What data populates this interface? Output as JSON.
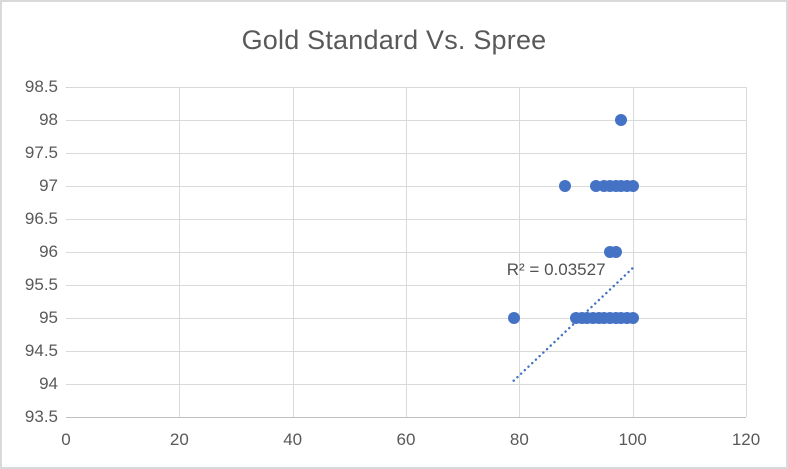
{
  "chart_data": {
    "type": "scatter",
    "title": "Gold Standard Vs. Spree",
    "xlabel": "",
    "ylabel": "",
    "xlim": [
      0,
      120
    ],
    "ylim": [
      93.5,
      98.5
    ],
    "x_ticks": [
      0,
      20,
      40,
      60,
      80,
      100,
      120
    ],
    "x_tick_labels": [
      "0",
      "20",
      "40",
      "60",
      "80",
      "100",
      "120"
    ],
    "y_ticks": [
      93.5,
      94,
      94.5,
      95,
      95.5,
      96,
      96.5,
      97,
      97.5,
      98,
      98.5
    ],
    "y_tick_labels": [
      "93.5",
      "94",
      "94.5",
      "95",
      "95.5",
      "96",
      "96.5",
      "97",
      "97.5",
      "98",
      "98.5"
    ],
    "grid": true,
    "legend": "none",
    "marker_color": "#4472C4",
    "gridline_color": "#D9D9D9",
    "axis_label_color": "#595959",
    "title_color": "#595959",
    "r2_label_color": "#515151",
    "points": [
      [
        98,
        98
      ],
      [
        88,
        97
      ],
      [
        93.5,
        97
      ],
      [
        95,
        97
      ],
      [
        96,
        97
      ],
      [
        97,
        97
      ],
      [
        98,
        97
      ],
      [
        99,
        97
      ],
      [
        100,
        97
      ],
      [
        96,
        96
      ],
      [
        97,
        96
      ],
      [
        79,
        95
      ],
      [
        90,
        95
      ],
      [
        91,
        95
      ],
      [
        92,
        95
      ],
      [
        93,
        95
      ],
      [
        94,
        95
      ],
      [
        95,
        95
      ],
      [
        96,
        95
      ],
      [
        97,
        95
      ],
      [
        98,
        95
      ],
      [
        99,
        95
      ],
      [
        100,
        95
      ]
    ],
    "trendline": {
      "style": "dotted",
      "color": "#4472C4",
      "x1": 79,
      "y1": 94.05,
      "x2": 100.3,
      "y2": 95.78,
      "r_squared": 0.03527,
      "label": "R² = 0.03527",
      "label_x": 86.5,
      "label_y": 95.73
    }
  }
}
